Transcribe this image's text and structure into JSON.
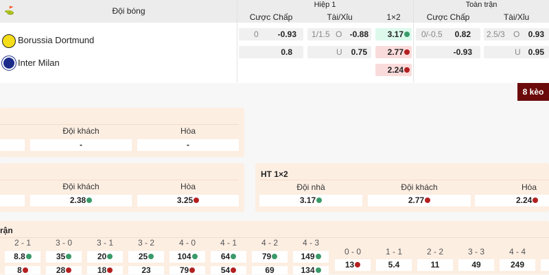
{
  "header": {
    "team_col": "Đội bóng",
    "half1": "Hiệp 1",
    "full": "Toàn trận",
    "handicap": "Cược Chấp",
    "overunder": "Tài/Xỉu",
    "x12": "1×2",
    "handicap2": "Cược Chấp",
    "overunder2": "Tài/Xỉu"
  },
  "teams": [
    {
      "name": "Borussia Dortmund",
      "logo": "BVB"
    },
    {
      "name": "Inter Milan",
      "logo": "IM"
    }
  ],
  "odds": {
    "h1_hcp": [
      {
        "line": "0",
        "val": "-0.93"
      },
      {
        "line": "",
        "val": "0.8"
      }
    ],
    "h1_ou": [
      {
        "line": "1/1.5",
        "side": "O",
        "val": "-0.88"
      },
      {
        "line": "",
        "side": "U",
        "val": "0.75"
      }
    ],
    "h1_1x2": [
      {
        "val": "3.17",
        "trend": "up"
      },
      {
        "val": "2.77",
        "trend": "down"
      },
      {
        "val": "2.24",
        "trend": "down"
      }
    ],
    "ft_hcp": [
      {
        "line": "0/-0.5",
        "val": "0.82"
      },
      {
        "line": "",
        "val": "-0.93"
      }
    ],
    "ft_ou": [
      {
        "line": "2.5/3",
        "side": "O",
        "val": "0.93"
      },
      {
        "line": "",
        "side": "U",
        "val": "0.95"
      }
    ]
  },
  "more_button": "8 kèo",
  "panel1": {
    "labels": [
      "Đội khách",
      "Hòa"
    ],
    "values": [
      "-",
      "-"
    ]
  },
  "panel2": {
    "labels": [
      "Đội khách",
      "Hòa"
    ],
    "values": [
      {
        "val": "2.38",
        "trend": "up"
      },
      {
        "val": "3.25",
        "trend": "down"
      }
    ]
  },
  "ht1x2": {
    "title": "HT 1×2",
    "labels": [
      "Đội nhà",
      "Đội khách",
      "Hòa"
    ],
    "values": [
      {
        "val": "3.17",
        "trend": "up"
      },
      {
        "val": "2.77",
        "trend": "down"
      },
      {
        "val": "2.24",
        "trend": "down"
      }
    ]
  },
  "correct_score": {
    "title": "rận",
    "home": [
      {
        "score": "2 - 1",
        "v1": "8.8",
        "t1": "up",
        "v2": "8",
        "t2": "down"
      },
      {
        "score": "3 - 0",
        "v1": "35",
        "t1": "up",
        "v2": "28",
        "t2": "down"
      },
      {
        "score": "3 - 1",
        "v1": "20",
        "t1": "up",
        "v2": "18",
        "t2": "down"
      },
      {
        "score": "3 - 2",
        "v1": "25",
        "t1": "up",
        "v2": "23",
        "t2": ""
      },
      {
        "score": "4 - 0",
        "v1": "104",
        "t1": "up",
        "v2": "79",
        "t2": "down"
      },
      {
        "score": "4 - 1",
        "v1": "64",
        "t1": "up",
        "v2": "54",
        "t2": "down"
      },
      {
        "score": "4 - 2",
        "v1": "79",
        "t1": "up",
        "v2": "69",
        "t2": ""
      },
      {
        "score": "4 - 3",
        "v1": "149",
        "t1": "up",
        "v2": "134",
        "t2": "up"
      }
    ],
    "draw": [
      {
        "score": "0 - 0",
        "v": "13",
        "t": "down"
      },
      {
        "score": "1 - 1",
        "v": "5.4",
        "t": ""
      },
      {
        "score": "2 - 2",
        "v": "11",
        "t": ""
      },
      {
        "score": "3 - 3",
        "v": "49",
        "t": ""
      },
      {
        "score": "4 - 4",
        "v": "249",
        "t": ""
      }
    ]
  },
  "colors": {
    "up": "#dcf9ec",
    "down": "#fadbdb",
    "button": "#6b0a0a",
    "panel": "#fdeee2"
  }
}
